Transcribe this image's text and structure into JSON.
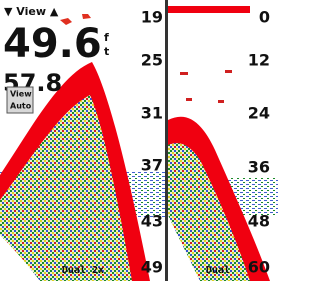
{
  "header": {
    "view_label": "▼ View ▲"
  },
  "left_panel": {
    "depth": "49.6",
    "depth_unit": [
      "f",
      "t"
    ],
    "secondary_depth": "57.8",
    "menu": [
      "View",
      "Auto"
    ],
    "scale": [
      "19",
      "25",
      "31",
      "37",
      "43",
      "49"
    ],
    "mode": "Dual 2x"
  },
  "right_panel": {
    "scale": [
      "0",
      "12",
      "24",
      "36",
      "48",
      "60"
    ],
    "mode": "Dual"
  }
}
